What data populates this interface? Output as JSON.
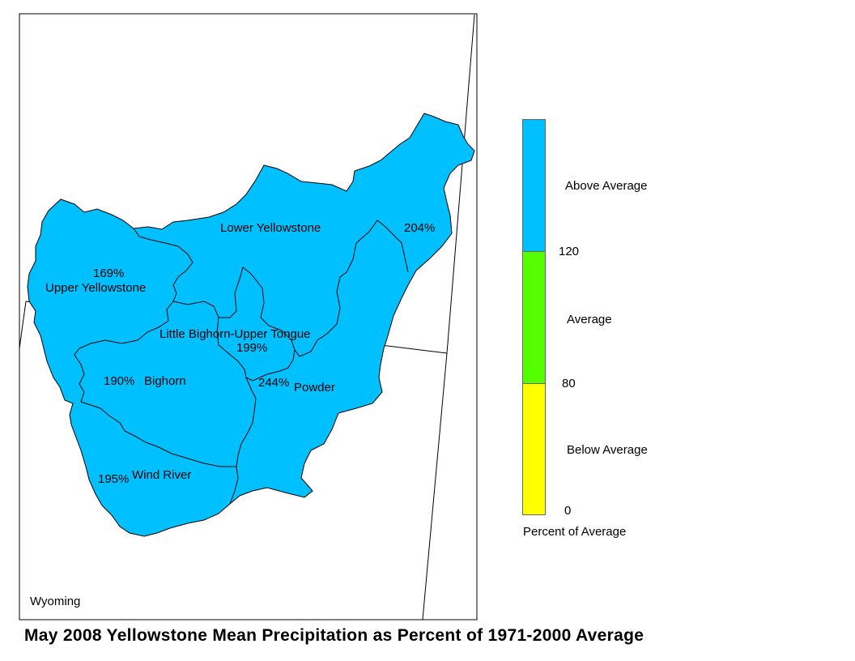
{
  "title": "May 2008 Yellowstone Mean Precipitation as Percent of 1971-2000 Average",
  "state_label": "Wyoming",
  "basins": [
    {
      "name": "Lower Yellowstone",
      "percent": "204%",
      "category": "Above Average"
    },
    {
      "name": "Upper Yellowstone",
      "percent": "169%",
      "category": "Above Average"
    },
    {
      "name": "Little Bighorn-Upper Tongue",
      "percent": "199%",
      "category": "Above Average"
    },
    {
      "name": "Bighorn",
      "percent": "190%",
      "category": "Above Average"
    },
    {
      "name": "Powder",
      "percent": "244%",
      "category": "Above Average"
    },
    {
      "name": "Wind River",
      "percent": "195%",
      "category": "Above Average"
    }
  ],
  "legend": {
    "title": "Percent of Average",
    "classes": [
      {
        "label": "Above Average",
        "color": "#00c0ff"
      },
      {
        "label": "Average",
        "color": "#55ff00"
      },
      {
        "label": "Below Average",
        "color": "#ffff00"
      }
    ],
    "breaks": [
      "120",
      "80",
      "0"
    ]
  },
  "colors": {
    "basin_fill": "#00c0ff",
    "outline": "#000000"
  }
}
